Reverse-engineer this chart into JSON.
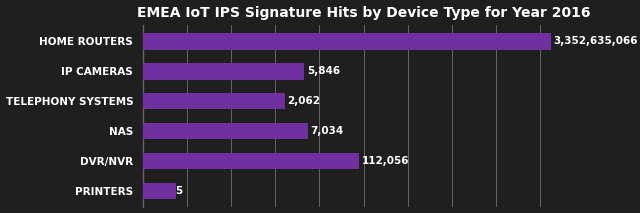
{
  "title": "EMEA IoT IPS Signature Hits by Device Type for Year 2016",
  "categories": [
    "HOME ROUTERS",
    "IP CAMERAS",
    "TELEPHONY SYSTEMS",
    "NAS",
    "DVR/NVR",
    "PRINTERS"
  ],
  "values": [
    3352635066,
    5846,
    2062,
    7034,
    112056,
    5
  ],
  "labels": [
    "3,352,635,066",
    "5,846",
    "2,062",
    "7,034",
    "112,056",
    "5"
  ],
  "bar_color": "#7030A0",
  "bar_color_dark": "#4B1A6E",
  "background_color": "#1f1f1f",
  "text_color": "#ffffff",
  "grid_color": "#666666",
  "title_fontsize": 10,
  "label_fontsize": 7.5,
  "tick_fontsize": 7.5,
  "bar_height": 0.55,
  "xlim_min": 1,
  "xlim_max": 20000000000,
  "num_vlines": 10
}
